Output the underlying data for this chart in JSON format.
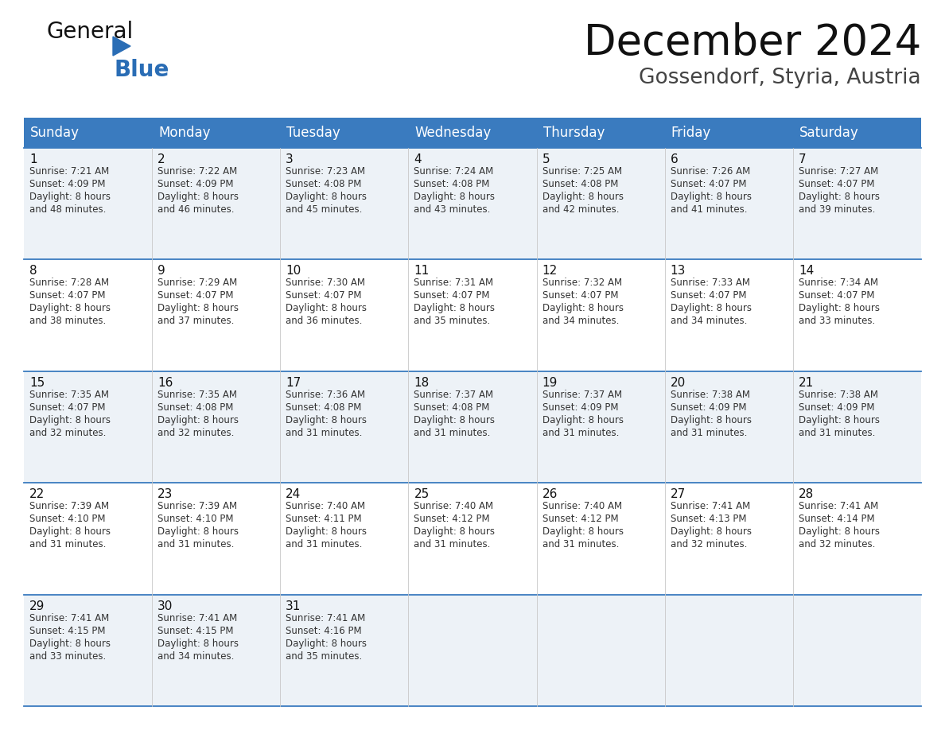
{
  "title": "December 2024",
  "subtitle": "Gossendorf, Styria, Austria",
  "header_color": "#3a7bbf",
  "header_text_color": "#ffffff",
  "bg_color": "#ffffff",
  "cell_bg_even": "#edf2f7",
  "cell_bg_odd": "#ffffff",
  "separator_color": "#3a7bbf",
  "day_names": [
    "Sunday",
    "Monday",
    "Tuesday",
    "Wednesday",
    "Thursday",
    "Friday",
    "Saturday"
  ],
  "days": [
    {
      "day": 1,
      "col": 0,
      "row": 0,
      "sunrise": "7:21 AM",
      "sunset": "4:09 PM",
      "minutes": "48"
    },
    {
      "day": 2,
      "col": 1,
      "row": 0,
      "sunrise": "7:22 AM",
      "sunset": "4:09 PM",
      "minutes": "46"
    },
    {
      "day": 3,
      "col": 2,
      "row": 0,
      "sunrise": "7:23 AM",
      "sunset": "4:08 PM",
      "minutes": "45"
    },
    {
      "day": 4,
      "col": 3,
      "row": 0,
      "sunrise": "7:24 AM",
      "sunset": "4:08 PM",
      "minutes": "43"
    },
    {
      "day": 5,
      "col": 4,
      "row": 0,
      "sunrise": "7:25 AM",
      "sunset": "4:08 PM",
      "minutes": "42"
    },
    {
      "day": 6,
      "col": 5,
      "row": 0,
      "sunrise": "7:26 AM",
      "sunset": "4:07 PM",
      "minutes": "41"
    },
    {
      "day": 7,
      "col": 6,
      "row": 0,
      "sunrise": "7:27 AM",
      "sunset": "4:07 PM",
      "minutes": "39"
    },
    {
      "day": 8,
      "col": 0,
      "row": 1,
      "sunrise": "7:28 AM",
      "sunset": "4:07 PM",
      "minutes": "38"
    },
    {
      "day": 9,
      "col": 1,
      "row": 1,
      "sunrise": "7:29 AM",
      "sunset": "4:07 PM",
      "minutes": "37"
    },
    {
      "day": 10,
      "col": 2,
      "row": 1,
      "sunrise": "7:30 AM",
      "sunset": "4:07 PM",
      "minutes": "36"
    },
    {
      "day": 11,
      "col": 3,
      "row": 1,
      "sunrise": "7:31 AM",
      "sunset": "4:07 PM",
      "minutes": "35"
    },
    {
      "day": 12,
      "col": 4,
      "row": 1,
      "sunrise": "7:32 AM",
      "sunset": "4:07 PM",
      "minutes": "34"
    },
    {
      "day": 13,
      "col": 5,
      "row": 1,
      "sunrise": "7:33 AM",
      "sunset": "4:07 PM",
      "minutes": "34"
    },
    {
      "day": 14,
      "col": 6,
      "row": 1,
      "sunrise": "7:34 AM",
      "sunset": "4:07 PM",
      "minutes": "33"
    },
    {
      "day": 15,
      "col": 0,
      "row": 2,
      "sunrise": "7:35 AM",
      "sunset": "4:07 PM",
      "minutes": "32"
    },
    {
      "day": 16,
      "col": 1,
      "row": 2,
      "sunrise": "7:35 AM",
      "sunset": "4:08 PM",
      "minutes": "32"
    },
    {
      "day": 17,
      "col": 2,
      "row": 2,
      "sunrise": "7:36 AM",
      "sunset": "4:08 PM",
      "minutes": "31"
    },
    {
      "day": 18,
      "col": 3,
      "row": 2,
      "sunrise": "7:37 AM",
      "sunset": "4:08 PM",
      "minutes": "31"
    },
    {
      "day": 19,
      "col": 4,
      "row": 2,
      "sunrise": "7:37 AM",
      "sunset": "4:09 PM",
      "minutes": "31"
    },
    {
      "day": 20,
      "col": 5,
      "row": 2,
      "sunrise": "7:38 AM",
      "sunset": "4:09 PM",
      "minutes": "31"
    },
    {
      "day": 21,
      "col": 6,
      "row": 2,
      "sunrise": "7:38 AM",
      "sunset": "4:09 PM",
      "minutes": "31"
    },
    {
      "day": 22,
      "col": 0,
      "row": 3,
      "sunrise": "7:39 AM",
      "sunset": "4:10 PM",
      "minutes": "31"
    },
    {
      "day": 23,
      "col": 1,
      "row": 3,
      "sunrise": "7:39 AM",
      "sunset": "4:10 PM",
      "minutes": "31"
    },
    {
      "day": 24,
      "col": 2,
      "row": 3,
      "sunrise": "7:40 AM",
      "sunset": "4:11 PM",
      "minutes": "31"
    },
    {
      "day": 25,
      "col": 3,
      "row": 3,
      "sunrise": "7:40 AM",
      "sunset": "4:12 PM",
      "minutes": "31"
    },
    {
      "day": 26,
      "col": 4,
      "row": 3,
      "sunrise": "7:40 AM",
      "sunset": "4:12 PM",
      "minutes": "31"
    },
    {
      "day": 27,
      "col": 5,
      "row": 3,
      "sunrise": "7:41 AM",
      "sunset": "4:13 PM",
      "minutes": "32"
    },
    {
      "day": 28,
      "col": 6,
      "row": 3,
      "sunrise": "7:41 AM",
      "sunset": "4:14 PM",
      "minutes": "32"
    },
    {
      "day": 29,
      "col": 0,
      "row": 4,
      "sunrise": "7:41 AM",
      "sunset": "4:15 PM",
      "minutes": "33"
    },
    {
      "day": 30,
      "col": 1,
      "row": 4,
      "sunrise": "7:41 AM",
      "sunset": "4:15 PM",
      "minutes": "34"
    },
    {
      "day": 31,
      "col": 2,
      "row": 4,
      "sunrise": "7:41 AM",
      "sunset": "4:16 PM",
      "minutes": "35"
    }
  ],
  "logo_general_color": "#111111",
  "logo_blue_color": "#2a6db5",
  "title_fontsize": 38,
  "subtitle_fontsize": 19,
  "header_fontsize": 12,
  "day_number_fontsize": 11,
  "cell_text_fontsize": 8.5
}
